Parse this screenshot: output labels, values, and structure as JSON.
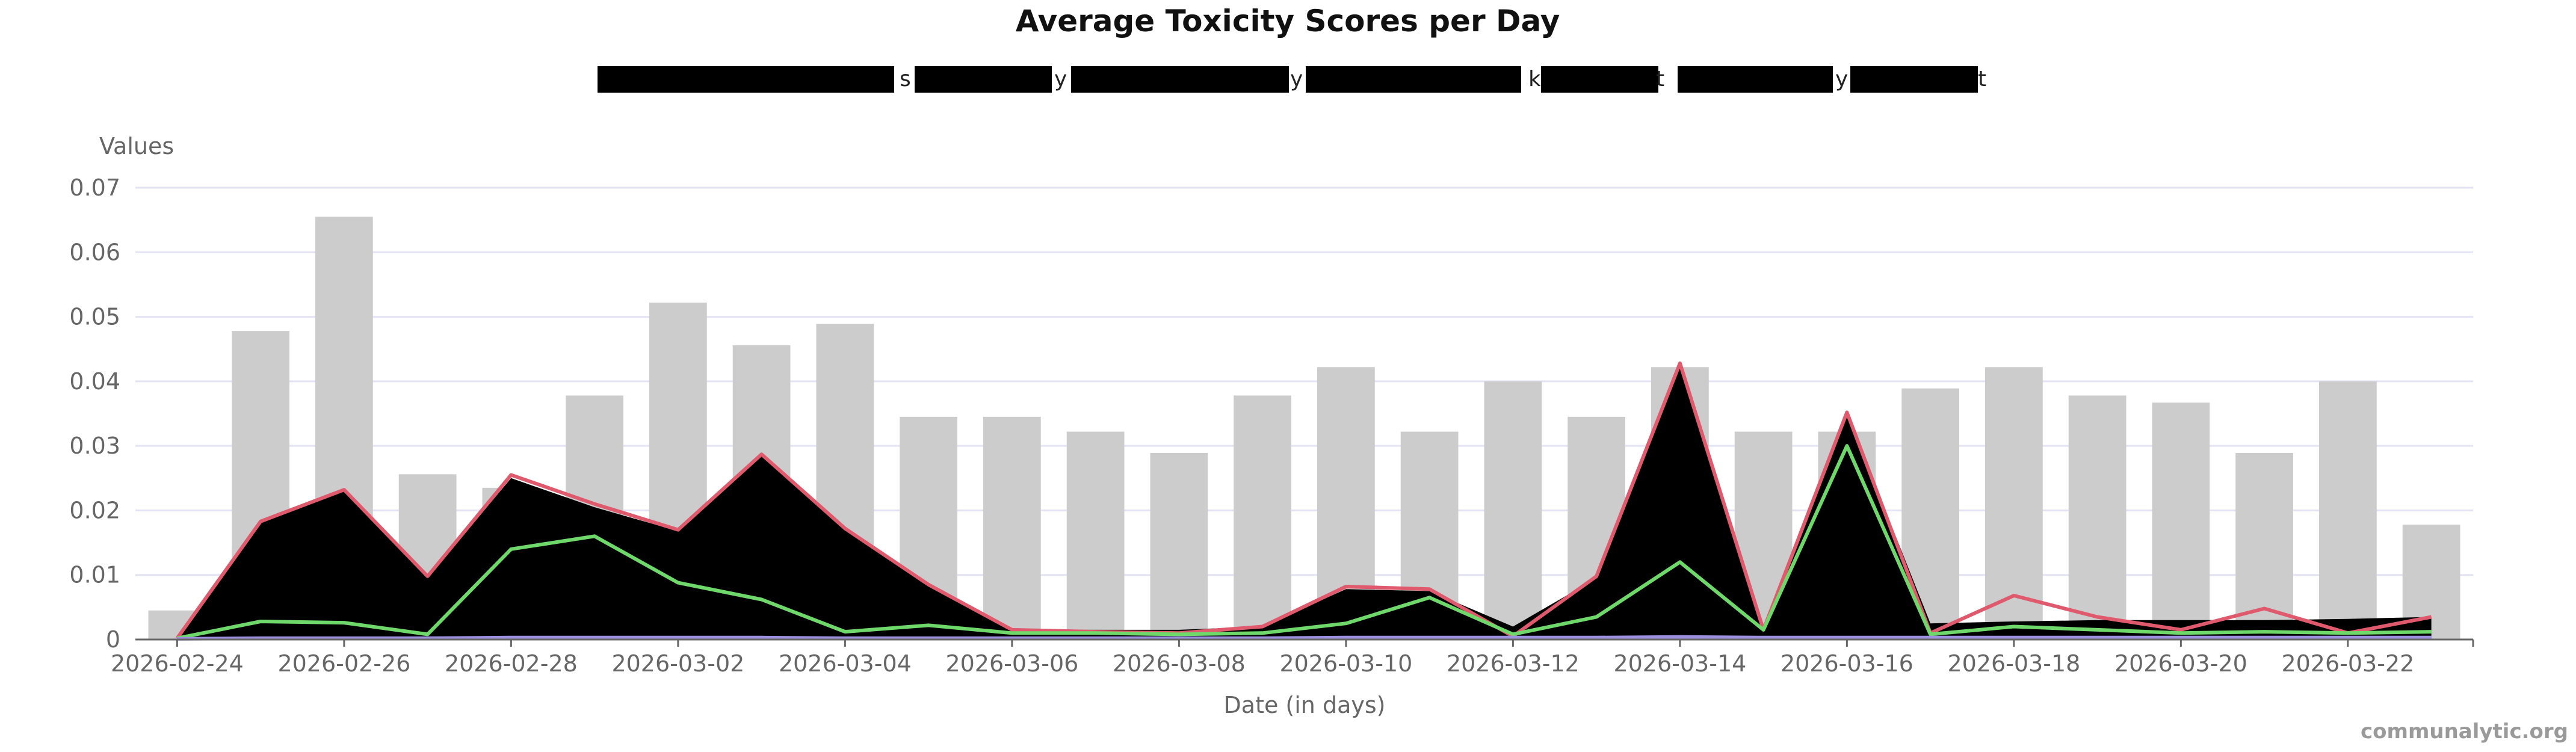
{
  "chart_data": {
    "type": "area",
    "title": "Average Toxicity Scores per Day",
    "xlabel": "Date (in days)",
    "ylabel": "Values",
    "ylim": [
      0,
      0.07
    ],
    "yticks": [
      "0",
      "0.01",
      "0.02",
      "0.03",
      "0.04",
      "0.05",
      "0.06",
      "0.07"
    ],
    "grid": true,
    "legend_position": "top",
    "credit": "communalytic.org",
    "dates": [
      "2026-02-24",
      "2026-02-25",
      "2026-02-26",
      "2026-02-27",
      "2026-02-28",
      "2026-03-01",
      "2026-03-02",
      "2026-03-03",
      "2026-03-04",
      "2026-03-05",
      "2026-03-06",
      "2026-03-07",
      "2026-03-08",
      "2026-03-09",
      "2026-03-10",
      "2026-03-11",
      "2026-03-12",
      "2026-03-13",
      "2026-03-14",
      "2026-03-15",
      "2026-03-16",
      "2026-03-17",
      "2026-03-18",
      "2026-03-19",
      "2026-03-20",
      "2026-03-21",
      "2026-03-22",
      "2026-03-23"
    ],
    "x_tick_labels": [
      "2026-02-24",
      "2026-02-26",
      "2026-02-28",
      "2026-03-02",
      "2026-03-04",
      "2026-03-06",
      "2026-03-08",
      "2026-03-10",
      "2026-03-12",
      "2026-03-14",
      "2026-03-16",
      "2026-03-18",
      "2026-03-20",
      "2026-03-22"
    ],
    "bars": {
      "color": "#cccccc",
      "values": [
        0.0045,
        0.0478,
        0.0655,
        0.0256,
        0.0235,
        0.0378,
        0.0522,
        0.0456,
        0.0489,
        0.0345,
        0.0345,
        0.0322,
        0.0289,
        0.0378,
        0.0422,
        0.0322,
        0.04,
        0.0345,
        0.0422,
        0.0322,
        0.0322,
        0.0389,
        0.0422,
        0.0378,
        0.0367,
        0.0289,
        0.04,
        0.0178
      ]
    },
    "series": [
      {
        "color": "#000000",
        "fill": true,
        "values": [
          0.0002,
          0.018,
          0.023,
          0.0095,
          0.025,
          0.0205,
          0.0168,
          0.0285,
          0.017,
          0.0085,
          0.0015,
          0.0015,
          0.0015,
          0.002,
          0.0078,
          0.0075,
          0.002,
          0.0095,
          0.0425,
          0.002,
          0.035,
          0.0025,
          0.0028,
          0.003,
          0.003,
          0.003,
          0.0032,
          0.0035
        ]
      },
      {
        "color": "#e05a6d",
        "fill": false,
        "values": [
          0.0002,
          0.0183,
          0.0232,
          0.0098,
          0.0255,
          0.021,
          0.017,
          0.0287,
          0.0172,
          0.0085,
          0.0015,
          0.0012,
          0.001,
          0.002,
          0.0082,
          0.0078,
          0.0005,
          0.0098,
          0.0428,
          0.0015,
          0.0352,
          0.001,
          0.0068,
          0.0035,
          0.0015,
          0.0048,
          0.001,
          0.0035
        ]
      },
      {
        "color": "#6fd86a",
        "fill": false,
        "values": [
          0.0002,
          0.0028,
          0.0026,
          0.0008,
          0.014,
          0.016,
          0.0088,
          0.0062,
          0.0012,
          0.0022,
          0.001,
          0.001,
          0.0008,
          0.001,
          0.0025,
          0.0065,
          0.0008,
          0.0035,
          0.012,
          0.0015,
          0.03,
          0.0008,
          0.002,
          0.0015,
          0.001,
          0.0012,
          0.001,
          0.0012
        ]
      },
      {
        "color": "#9c8fe0",
        "fill": false,
        "values": [
          0.0001,
          0.0002,
          0.0002,
          0.0002,
          0.0003,
          0.0003,
          0.0003,
          0.0003,
          0.0002,
          0.0002,
          0.0002,
          0.0002,
          0.0002,
          0.0002,
          0.0003,
          0.0003,
          0.0003,
          0.0003,
          0.0004,
          0.0003,
          0.0003,
          0.0003,
          0.0003,
          0.0003,
          0.0003,
          0.0003,
          0.0003,
          0.0003
        ]
      }
    ],
    "legend": {
      "visible_fragments": [
        "s",
        "y",
        "y",
        "k",
        "t",
        "y",
        "t"
      ],
      "redacted_items": 7
    }
  }
}
